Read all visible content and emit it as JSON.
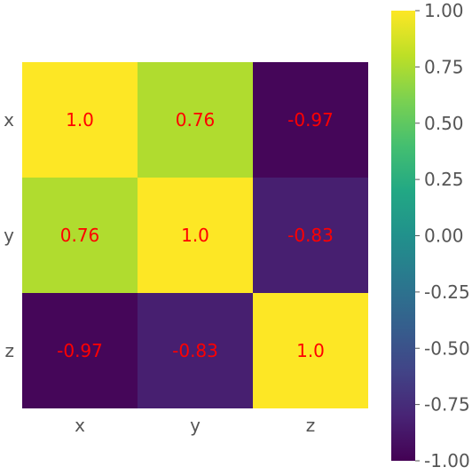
{
  "chart_data": {
    "type": "heatmap",
    "title": "",
    "xlabel": "",
    "ylabel": "",
    "x_categories": [
      "x",
      "y",
      "z"
    ],
    "y_categories": [
      "x",
      "y",
      "z"
    ],
    "values": [
      [
        1.0,
        0.76,
        -0.97
      ],
      [
        0.76,
        1.0,
        -0.83
      ],
      [
        -0.97,
        -0.83,
        1.0
      ]
    ],
    "cell_labels": [
      [
        "1.0",
        "0.76",
        "-0.97"
      ],
      [
        "0.76",
        "1.0",
        "-0.83"
      ],
      [
        "-0.97",
        "-0.83",
        "1.0"
      ]
    ],
    "colormap": "viridis",
    "vmin": -1.0,
    "vmax": 1.0,
    "annotation_color": "#ff0000",
    "colorbar": {
      "ticks": [
        1.0,
        0.75,
        0.5,
        0.25,
        0.0,
        -0.25,
        -0.5,
        -0.75,
        -1.0
      ],
      "tick_labels": [
        "1.00",
        "0.75",
        "0.50",
        "0.25",
        "0.00",
        "-0.25",
        "-0.50",
        "-0.75",
        "-1.00"
      ],
      "position": "right"
    },
    "grid": false
  }
}
